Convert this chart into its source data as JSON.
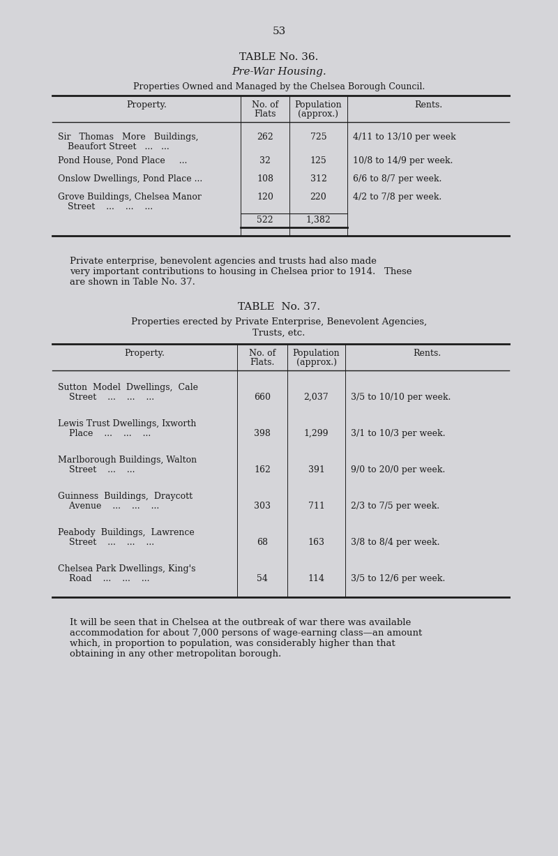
{
  "page_number": "53",
  "bg_color": "#d5d5d9",
  "text_color": "#1a1a1a",
  "table1": {
    "title1": "TABLE No. 36.",
    "title2": "Pre-War Housing.",
    "title3": "Properties Owned and Managed by the Chelsea Borough Council.",
    "col_headers": [
      "Property.",
      "No. of\nFlats",
      "Population\n(approx.)",
      "Rents."
    ],
    "rows": [
      [
        "Sir  Thomas  More  Buildings,",
        "    Beaufort Street    ...    ...",
        "262",
        "725",
        "4/11 to 13/10 per week"
      ],
      [
        "Pond House, Pond Place    ...",
        "",
        "32",
        "125",
        "10/8 to 14/9 per week."
      ],
      [
        "Onslow Dwellings, Pond Place ...",
        "",
        "108",
        "312",
        "6/6 to 8/7 per week."
      ],
      [
        "Grove Buildings, Chelsea Manor",
        "    Street    ...    ...    ...",
        "120",
        "220",
        "4/2 to 7/8 per week."
      ],
      [
        "",
        "",
        "522",
        "1,382",
        ""
      ]
    ]
  },
  "middle_text": [
    "Private enterprise, benevolent agencies and trusts had also made",
    "very important contributions to housing in Chelsea prior to 1914.   These",
    "are shown in Table No. 37."
  ],
  "table2": {
    "title1": "TABLE  No. 37.",
    "title2a": "Properties erected by Private Enterprise, Benevolent Agencies,",
    "title2b": "Trusts, etc.",
    "col_headers": [
      "Property.",
      "No. of\nFlats.",
      "Population\n(approx.)",
      "Rents."
    ],
    "rows": [
      [
        "Sutton  Model  Dwellings,  Cale",
        "    Street    ...    ...    ...",
        "660",
        "2,037",
        "3/5 to 10/10 per week."
      ],
      [
        "Lewis Trust Dwellings, Ixworth",
        "    Place    ...    ...    ...",
        "398",
        "1,299",
        "3/1 to 10/3 per week."
      ],
      [
        "Marlborough Buildings, Walton",
        "    Street    ...    ...",
        "162",
        "391",
        "9/0 to 20/0 per week."
      ],
      [
        "Guinness  Buildings,  Draycott",
        "    Avenue    ...    ...    ...",
        "303",
        "711",
        "2/3 to 7/5 per week."
      ],
      [
        "Peabody  Buildings,  Lawrence",
        "    Street    ...    ...    ...",
        "68",
        "163",
        "3/8 to 8/4 per week."
      ],
      [
        "Chelsea Park Dwellings, King's",
        "    Road    ...    ...    ...",
        "54",
        "114",
        "3/5 to 12/6 per week."
      ]
    ]
  },
  "footer_text": [
    "It will be seen that in Chelsea at the outbreak of war there was available",
    "accommodation for about 7,000 persons of wage-earning class—an amount",
    "which, in proportion to population, was considerably higher than that",
    "obtaining in any other metropolitan borough."
  ]
}
